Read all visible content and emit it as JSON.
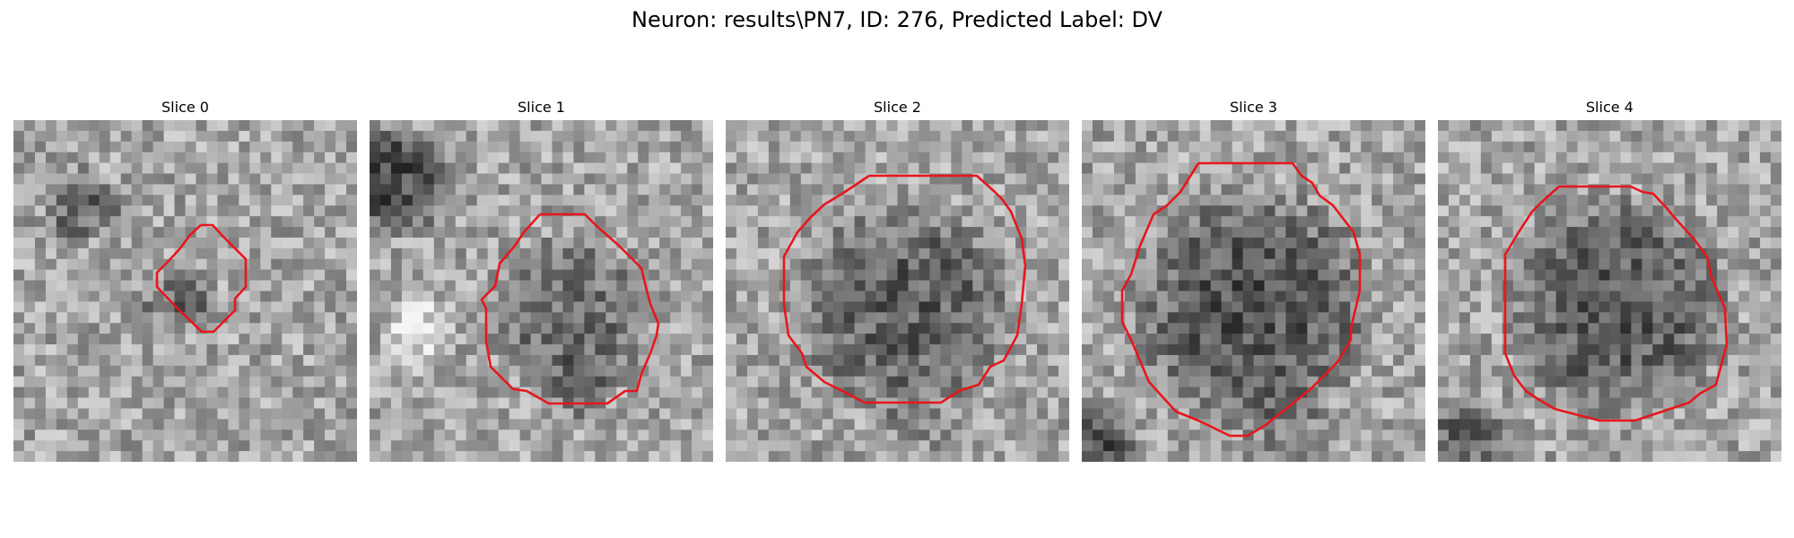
{
  "figure": {
    "title": "Neuron: results\\PN7, ID: 276, Predicted Label: DV"
  },
  "panels": [
    {
      "title": "Slice 0"
    },
    {
      "title": "Slice 1"
    },
    {
      "title": "Slice 2"
    },
    {
      "title": "Slice 3"
    },
    {
      "title": "Slice 4"
    }
  ],
  "colors": {
    "contour": "#e8161c",
    "background": "#ffffff"
  },
  "colormap": "gray"
}
